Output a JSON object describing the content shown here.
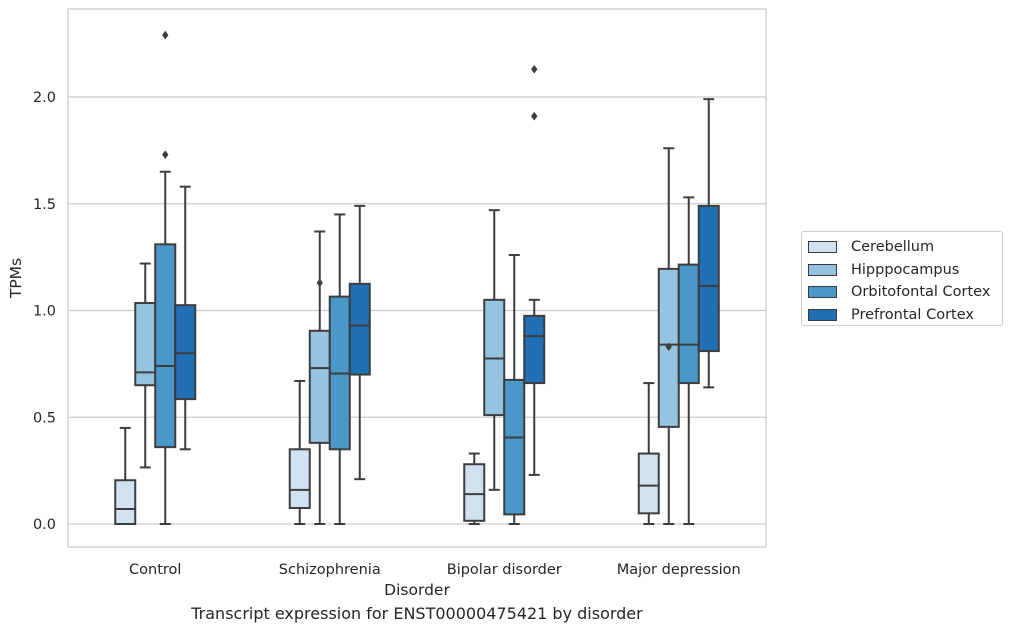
{
  "chart_data": {
    "type": "box",
    "title": "",
    "caption": "Transcript expression for ENST00000475421 by disorder",
    "xlabel": "Disorder",
    "ylabel": "TPMs",
    "ylim": [
      -0.11,
      2.4
    ],
    "yticks": [
      "0.0",
      "0.5",
      "1.0",
      "1.5",
      "2.0"
    ],
    "ytick_values": [
      0,
      0.5,
      1.0,
      1.5,
      2.0
    ],
    "grid": true,
    "legend_position": "right",
    "categories": [
      "Control",
      "Schizophrenia",
      "Bipolar disorder",
      "Major depression"
    ],
    "series": [
      {
        "name": "Cerebellum",
        "color": "#d0e1f2",
        "boxes": [
          {
            "whisker_low": 0.0,
            "q1": 0.0,
            "median": 0.07,
            "q3": 0.205,
            "whisker_high": 0.45,
            "outliers": []
          },
          {
            "whisker_low": 0.0,
            "q1": 0.075,
            "median": 0.16,
            "q3": 0.35,
            "whisker_high": 0.67,
            "outliers": []
          },
          {
            "whisker_low": 0.0,
            "q1": 0.015,
            "median": 0.14,
            "q3": 0.28,
            "whisker_high": 0.33,
            "outliers": []
          },
          {
            "whisker_low": 0.0,
            "q1": 0.05,
            "median": 0.18,
            "q3": 0.33,
            "whisker_high": 0.66,
            "outliers": []
          }
        ]
      },
      {
        "name": "Hipppocampus",
        "color": "#94c4df",
        "boxes": [
          {
            "whisker_low": 0.265,
            "q1": 0.65,
            "median": 0.71,
            "q3": 1.035,
            "whisker_high": 1.22,
            "outliers": []
          },
          {
            "whisker_low": 0.0,
            "q1": 0.38,
            "median": 0.73,
            "q3": 0.905,
            "whisker_high": 1.37,
            "outliers": [
              1.13
            ]
          },
          {
            "whisker_low": 0.16,
            "q1": 0.51,
            "median": 0.775,
            "q3": 1.05,
            "whisker_high": 1.47,
            "outliers": []
          },
          {
            "whisker_low": 0.0,
            "q1": 0.455,
            "median": 0.84,
            "q3": 1.195,
            "whisker_high": 1.76,
            "outliers": [
              0.83
            ]
          }
        ]
      },
      {
        "name": "Orbitofontal Cortex",
        "color": "#4a98c9",
        "boxes": [
          {
            "whisker_low": 0.0,
            "q1": 0.36,
            "median": 0.74,
            "q3": 1.31,
            "whisker_high": 1.65,
            "outliers": [
              2.29,
              1.73
            ]
          },
          {
            "whisker_low": 0.0,
            "q1": 0.35,
            "median": 0.705,
            "q3": 1.065,
            "whisker_high": 1.45,
            "outliers": []
          },
          {
            "whisker_low": 0.0,
            "q1": 0.045,
            "median": 0.405,
            "q3": 0.675,
            "whisker_high": 1.26,
            "outliers": []
          },
          {
            "whisker_low": 0.0,
            "q1": 0.66,
            "median": 0.84,
            "q3": 1.215,
            "whisker_high": 1.53,
            "outliers": []
          }
        ]
      },
      {
        "name": "Prefrontal Cortex",
        "color": "#2170b5",
        "boxes": [
          {
            "whisker_low": 0.35,
            "q1": 0.585,
            "median": 0.8,
            "q3": 1.025,
            "whisker_high": 1.58,
            "outliers": []
          },
          {
            "whisker_low": 0.21,
            "q1": 0.7,
            "median": 0.93,
            "q3": 1.125,
            "whisker_high": 1.49,
            "outliers": []
          },
          {
            "whisker_low": 0.23,
            "q1": 0.66,
            "median": 0.88,
            "q3": 0.975,
            "whisker_high": 1.05,
            "outliers": [
              2.13,
              1.91
            ]
          },
          {
            "whisker_low": 0.64,
            "q1": 0.81,
            "median": 1.115,
            "q3": 1.49,
            "whisker_high": 1.99,
            "outliers": []
          }
        ]
      }
    ]
  }
}
